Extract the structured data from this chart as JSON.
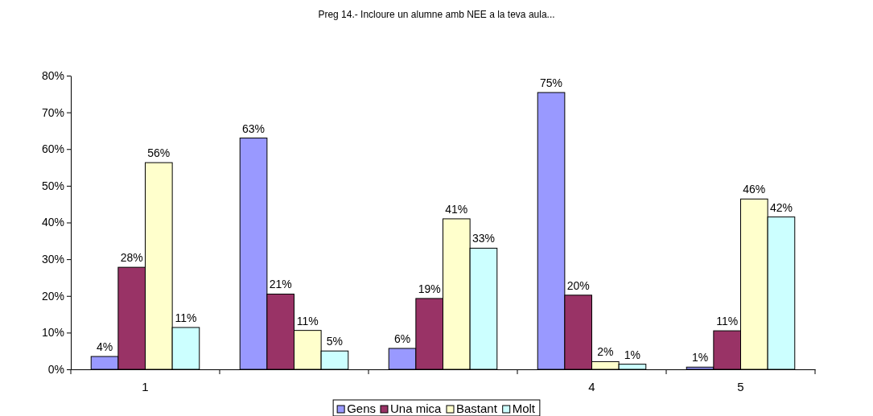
{
  "chart_data": {
    "type": "bar",
    "title": "Preg 14.- Incloure un alumne amb NEE a la teva aula...",
    "categories": [
      "1",
      null,
      null,
      "4",
      "5"
    ],
    "series": [
      {
        "name": "Gens",
        "color": "#9999ff",
        "values": [
          3.5,
          63,
          5.7,
          75.4,
          0.6
        ],
        "value_labels": [
          "4%",
          "63%",
          "6%",
          "75%",
          "1%"
        ]
      },
      {
        "name": "Una mica",
        "color": "#993366",
        "values": [
          27.8,
          20.5,
          19.3,
          20.2,
          10.5
        ],
        "value_labels": [
          "28%",
          "21%",
          "19%",
          "20%",
          "11%"
        ]
      },
      {
        "name": "Bastant",
        "color": "#ffffcc",
        "values": [
          56.3,
          10.6,
          41,
          2.1,
          46.4
        ],
        "value_labels": [
          "56%",
          "11%",
          "41%",
          "2%",
          "46%"
        ]
      },
      {
        "name": "Molt",
        "color": "#ccffff",
        "values": [
          11.4,
          5,
          33,
          1.4,
          41.5
        ],
        "value_labels": [
          "11%",
          "5%",
          "33%",
          "1%",
          "42%"
        ]
      }
    ],
    "ylim": [
      0,
      80
    ],
    "yticks": [
      {
        "value": 0,
        "label": "0%"
      },
      {
        "value": 10,
        "label": "10%"
      },
      {
        "value": 20,
        "label": "20%"
      },
      {
        "value": 30,
        "label": "30%"
      },
      {
        "value": 40,
        "label": "40%"
      },
      {
        "value": 50,
        "label": "50%"
      },
      {
        "value": 60,
        "label": "60%"
      },
      {
        "value": 70,
        "label": "70%"
      },
      {
        "value": 80,
        "label": "80%"
      }
    ],
    "grid": false,
    "legend": "bottom"
  }
}
